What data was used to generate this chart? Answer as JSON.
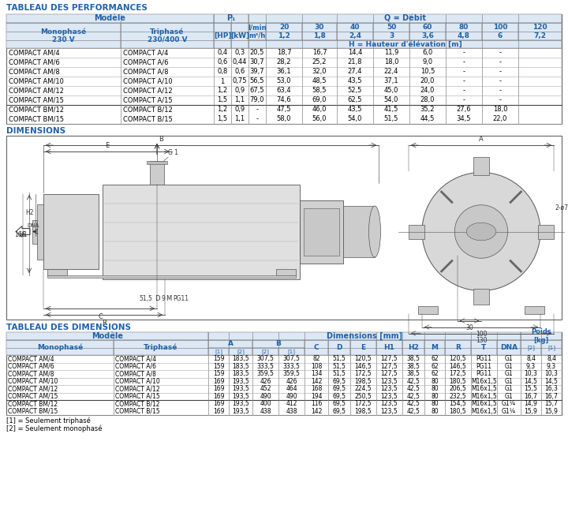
{
  "title_perf": "TABLEAU DES PERFORMANCES",
  "title_dim": "DIMENSIONS",
  "title_dim_table": "TABLEAU DES DIMENSIONS",
  "blue": "#2060A8",
  "perf_data": [
    [
      "COMPACT AM/4",
      "COMPACT A/4",
      "0,4",
      "0,3",
      "20,5",
      "18,7",
      "16,7",
      "14,4",
      "11,9",
      "6,0",
      "-",
      "-"
    ],
    [
      "COMPACT AM/6",
      "COMPACT A/6",
      "0,6",
      "0,44",
      "30,7",
      "28,2",
      "25,2",
      "21,8",
      "18,0",
      "9,0",
      "-",
      "-"
    ],
    [
      "COMPACT AM/8",
      "COMPACT A/8",
      "0,8",
      "0,6",
      "39,7",
      "36,1",
      "32,0",
      "27,4",
      "22,4",
      "10,5",
      "-",
      "-"
    ],
    [
      "COMPACT AM/10",
      "COMPACT A/10",
      "1",
      "0,75",
      "56,5",
      "53,0",
      "48,5",
      "43,5",
      "37,1",
      "20,0",
      "-",
      "-"
    ],
    [
      "COMPACT AM/12",
      "COMPACT A/12",
      "1,2",
      "0,9",
      "67,5",
      "63,4",
      "58,5",
      "52,5",
      "45,0",
      "24,0",
      "-",
      "-"
    ],
    [
      "COMPACT AM/15",
      "COMPACT A/15",
      "1,5",
      "1,1",
      "79,0",
      "74,6",
      "69,0",
      "62,5",
      "54,0",
      "28,0",
      "-",
      "-"
    ],
    [
      "COMPACT BM/12",
      "COMPACT B/12",
      "1,2",
      "0,9",
      "-",
      "47,5",
      "46,0",
      "43,5",
      "41,5",
      "35,2",
      "27,6",
      "18,0"
    ],
    [
      "COMPACT BM/15",
      "COMPACT B/15",
      "1,5",
      "1,1",
      "-",
      "58,0",
      "56,0",
      "54,0",
      "51,5",
      "44,5",
      "34,5",
      "22,0"
    ]
  ],
  "dim_data": [
    [
      "COMPACT AM/4",
      "COMPACT A/4",
      "159",
      "183,5",
      "307,5",
      "307,5",
      "82",
      "51,5",
      "120,5",
      "127,5",
      "38,5",
      "62",
      "120,5",
      "PG11",
      "G1",
      "8,4",
      "8,4"
    ],
    [
      "COMPACT AM/6",
      "COMPACT A/6",
      "159",
      "183,5",
      "333,5",
      "333,5",
      "108",
      "51,5",
      "146,5",
      "127,5",
      "38,5",
      "62",
      "146,5",
      "PG11",
      "G1",
      "9,3",
      "9,3"
    ],
    [
      "COMPACT AM/8",
      "COMPACT A/8",
      "159",
      "183,5",
      "359,5",
      "359,5",
      "134",
      "51,5",
      "172,5",
      "127,5",
      "38,5",
      "62",
      "172,5",
      "PG11",
      "G1",
      "10,3",
      "10,3"
    ],
    [
      "COMPACT AM/10",
      "COMPACT A/10",
      "169",
      "193,5",
      "426",
      "426",
      "142",
      "69,5",
      "198,5",
      "123,5",
      "42,5",
      "80",
      "180,5",
      "M16x1,5",
      "G1",
      "14,5",
      "14,5"
    ],
    [
      "COMPACT AM/12",
      "COMPACT A/12",
      "169",
      "193,5",
      "452",
      "464",
      "168",
      "69,5",
      "224,5",
      "123,5",
      "42,5",
      "80",
      "206,5",
      "M16x1,5",
      "G1",
      "15,5",
      "16,3"
    ],
    [
      "COMPACT AM/15",
      "COMPACT A/15",
      "169",
      "193,5",
      "490",
      "490",
      "194",
      "69,5",
      "250,5",
      "123,5",
      "42,5",
      "80",
      "232,5",
      "M16x1,5",
      "G1",
      "16,7",
      "16,7"
    ],
    [
      "COMPACT BM/12",
      "COMPACT B/12",
      "169",
      "193,5",
      "400",
      "412",
      "116",
      "69,5",
      "172,5",
      "123,5",
      "42,5",
      "80",
      "154,5",
      "M16x1,5",
      "G1¼",
      "14,9",
      "15,7"
    ],
    [
      "COMPACT BM/15",
      "COMPACT B/15",
      "169",
      "193,5",
      "438",
      "438",
      "142",
      "69,5",
      "198,5",
      "123,5",
      "42,5",
      "80",
      "180,5",
      "M16x1,5",
      "G1¼",
      "15,9",
      "15,9"
    ]
  ],
  "footnote1": "[1] = Seulement triphasé",
  "footnote2": "[2] = Seulement monophasé"
}
